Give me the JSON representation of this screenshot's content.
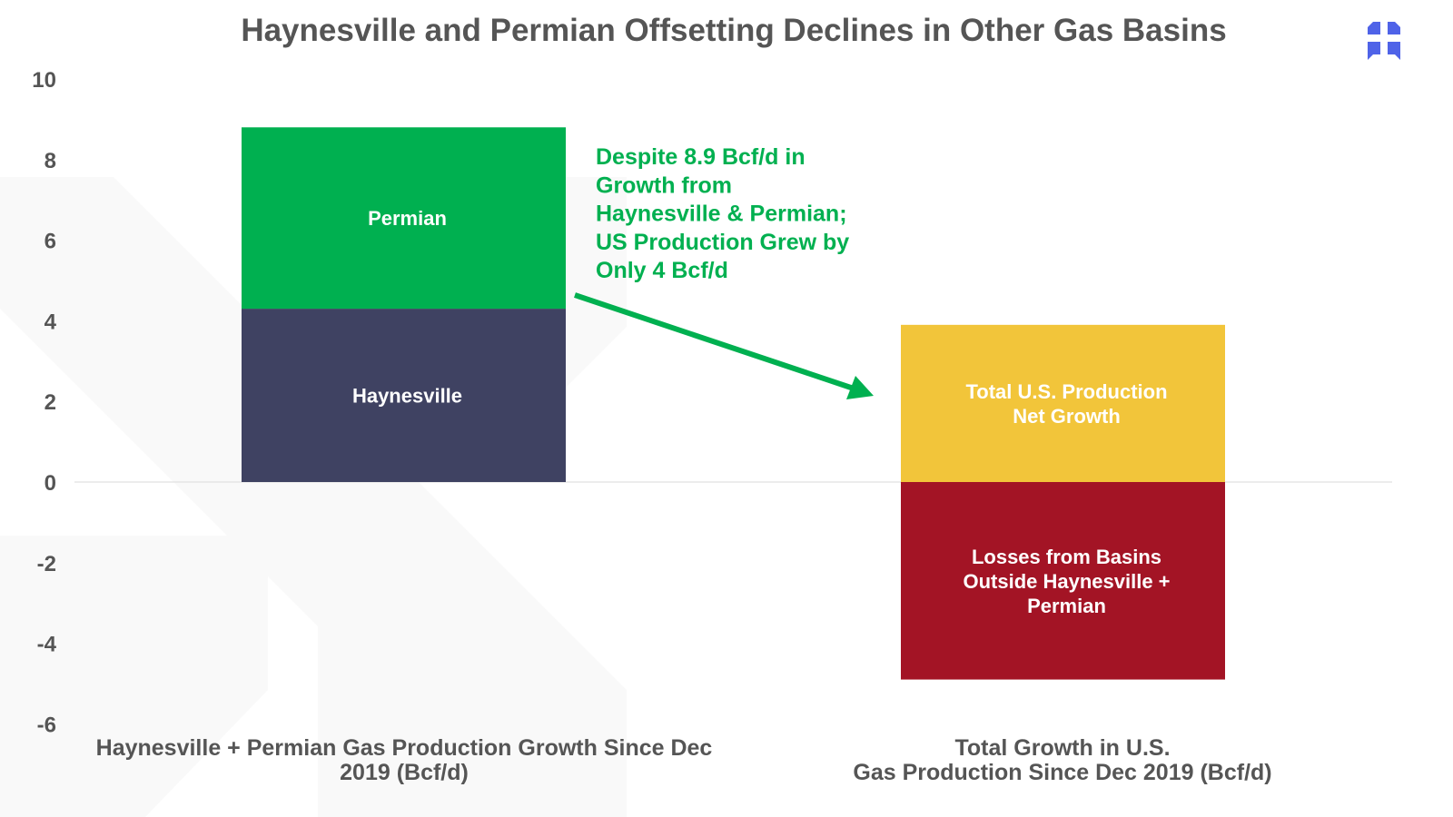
{
  "chart_data": {
    "type": "bar",
    "stacked": true,
    "title": "Haynesville and Permian Offsetting Declines in Other Gas Basins",
    "xlabel": "",
    "ylabel": "",
    "ylim": [
      -6,
      10
    ],
    "yticks": [
      10,
      8,
      6,
      4,
      2,
      0,
      -2,
      -4,
      -6
    ],
    "grid": false,
    "categories": [
      [
        "Haynesville + Permian Gas Production Growth Since Dec",
        "2019 (Bcf/d)"
      ],
      [
        "Total Growth in U.S.",
        "Gas Production Since Dec 2019 (Bcf/d)"
      ]
    ],
    "series": [
      {
        "name": "Haynesville",
        "label": [
          "Haynesville"
        ],
        "category": 0,
        "base": 0,
        "value": 4.3,
        "color": "#3f4262"
      },
      {
        "name": "Permian",
        "label": [
          "Permian"
        ],
        "category": 0,
        "base": 4.3,
        "value": 4.5,
        "color": "#00b050"
      },
      {
        "name": "Total U.S. Production Net Growth",
        "label": [
          "Total U.S. Production",
          "Net Growth"
        ],
        "category": 1,
        "base": 0,
        "value": 3.9,
        "color": "#f2c53a"
      },
      {
        "name": "Losses from Basins Outside Haynesville + Permian",
        "label": [
          "Losses from Basins",
          "Outside Haynesville +",
          "Permian"
        ],
        "category": 1,
        "base": 0,
        "value": -4.9,
        "color": "#a31425"
      }
    ],
    "annotation": {
      "lines": [
        "Despite 8.9 Bcf/d in",
        "Growth from",
        "Haynesville & Permian;",
        "US Production Grew by",
        "Only 4 Bcf/d"
      ],
      "color": "#00b050"
    }
  },
  "logo": {
    "color": "#4f63e8"
  }
}
